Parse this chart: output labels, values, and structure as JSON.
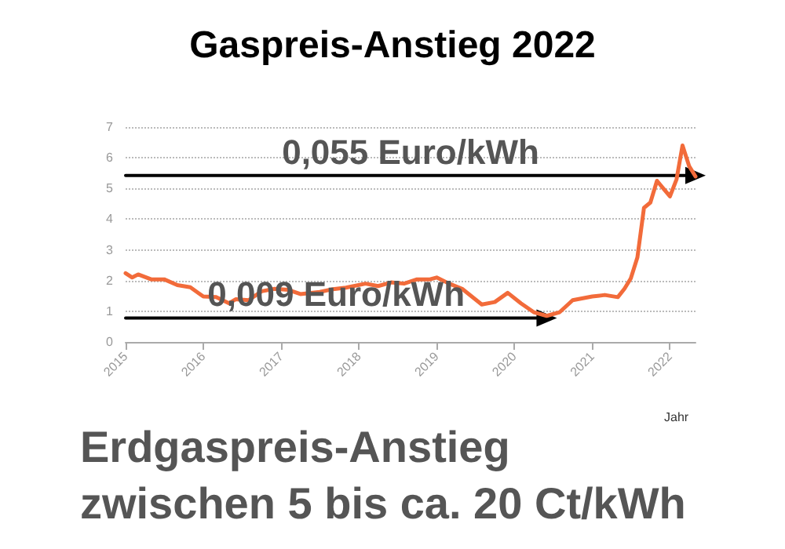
{
  "chart_data": {
    "type": "line",
    "title": "Gaspreis-Anstieg 2022",
    "xlabel": "Jahr",
    "x": [
      "2015-01",
      "2015-02",
      "2015-03",
      "2015-05",
      "2015-07",
      "2015-09",
      "2015-11",
      "2016-01",
      "2016-03",
      "2016-05",
      "2016-06",
      "2016-08",
      "2016-10",
      "2016-12",
      "2017-02",
      "2017-04",
      "2017-07",
      "2017-09",
      "2017-11",
      "2018-02",
      "2018-04",
      "2018-06",
      "2018-08",
      "2018-10",
      "2018-12",
      "2019-01",
      "2019-03",
      "2019-05",
      "2019-06",
      "2019-08",
      "2019-10",
      "2019-12",
      "2020-02",
      "2020-04",
      "2020-06",
      "2020-08",
      "2020-10",
      "2021-01",
      "2021-03",
      "2021-05",
      "2021-06",
      "2021-07",
      "2021-08",
      "2021-09",
      "2021-10",
      "2021-11",
      "2021-12",
      "2022-01",
      "2022-02",
      "2022-03",
      "2022-04",
      "2022-05"
    ],
    "series": [
      {
        "name": "0,055 Euro/kWh",
        "color": "#000000",
        "x": [
          "2015-01",
          "2022-05"
        ],
        "values": [
          5.42,
          5.42
        ],
        "marker": "triangle"
      },
      {
        "name": "0,009 Euro/kWh",
        "color": "#000000",
        "x": [
          "2015-01",
          "2020-06"
        ],
        "values": [
          0.78,
          0.78
        ],
        "marker": "triangle"
      },
      {
        "color": "#f26b3a",
        "values": [
          2.24,
          2.1,
          2.2,
          2.04,
          2.04,
          1.85,
          1.78,
          1.48,
          1.46,
          1.26,
          1.39,
          1.36,
          1.65,
          1.73,
          1.7,
          1.56,
          1.63,
          1.72,
          1.77,
          1.9,
          1.82,
          1.94,
          1.9,
          2.04,
          2.04,
          2.1,
          1.9,
          1.73,
          1.56,
          1.22,
          1.3,
          1.6,
          1.26,
          0.97,
          0.85,
          0.97,
          1.36,
          1.48,
          1.53,
          1.46,
          1.73,
          2.07,
          2.75,
          4.37,
          4.54,
          5.25,
          5.0,
          4.74,
          5.3,
          6.4,
          5.73,
          5.39
        ]
      }
    ],
    "xlim": [
      "2015-01",
      "2022-05"
    ],
    "xticks": [
      {
        "value": "2015-01",
        "label": "2015"
      },
      {
        "value": "2016-01",
        "label": "2016"
      },
      {
        "value": "2017-01",
        "label": "2017"
      },
      {
        "value": "2018-01",
        "label": "2018"
      },
      {
        "value": "2019-01",
        "label": "2019"
      },
      {
        "value": "2020-01",
        "label": "2020"
      },
      {
        "value": "2021-01",
        "label": "2021"
      },
      {
        "value": "2022-01",
        "label": "2022"
      }
    ],
    "ylim": [
      0,
      7
    ],
    "yticks": [
      0,
      1,
      2,
      3,
      4,
      5,
      6,
      7
    ],
    "grid": "y",
    "marker": "none",
    "line_style": "solid",
    "annotations": [
      "Erdgaspreis-Anstieg\nzwischen 5 bis ca. 20 Ct/kWh"
    ]
  }
}
